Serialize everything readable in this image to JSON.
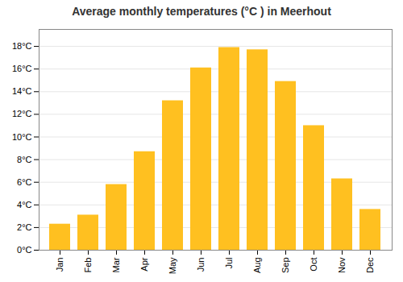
{
  "chart_data": {
    "type": "bar",
    "title": "Average monthly temperatures (°C ) in Meerhout",
    "categories": [
      "Jan",
      "Feb",
      "Mar",
      "Apr",
      "May",
      "Jun",
      "Jul",
      "Aug",
      "Sep",
      "Oct",
      "Nov",
      "Dec"
    ],
    "values": [
      2.3,
      3.1,
      5.8,
      8.7,
      13.2,
      16.1,
      17.9,
      17.7,
      14.9,
      11.0,
      6.3,
      3.6
    ],
    "color": "#FFC020",
    "ylim": [
      0,
      19.5
    ],
    "yticks": [
      {
        "value": 0,
        "label": "0°C"
      },
      {
        "value": 2,
        "label": "2°C"
      },
      {
        "value": 4,
        "label": "4°C"
      },
      {
        "value": 6,
        "label": "6°C"
      },
      {
        "value": 8,
        "label": "8°C"
      },
      {
        "value": 10,
        "label": "10°C"
      },
      {
        "value": 12,
        "label": "12°C"
      },
      {
        "value": 14,
        "label": "14°C"
      },
      {
        "value": 16,
        "label": "16°C"
      },
      {
        "value": 18,
        "label": "18°C"
      }
    ],
    "grid": true
  }
}
